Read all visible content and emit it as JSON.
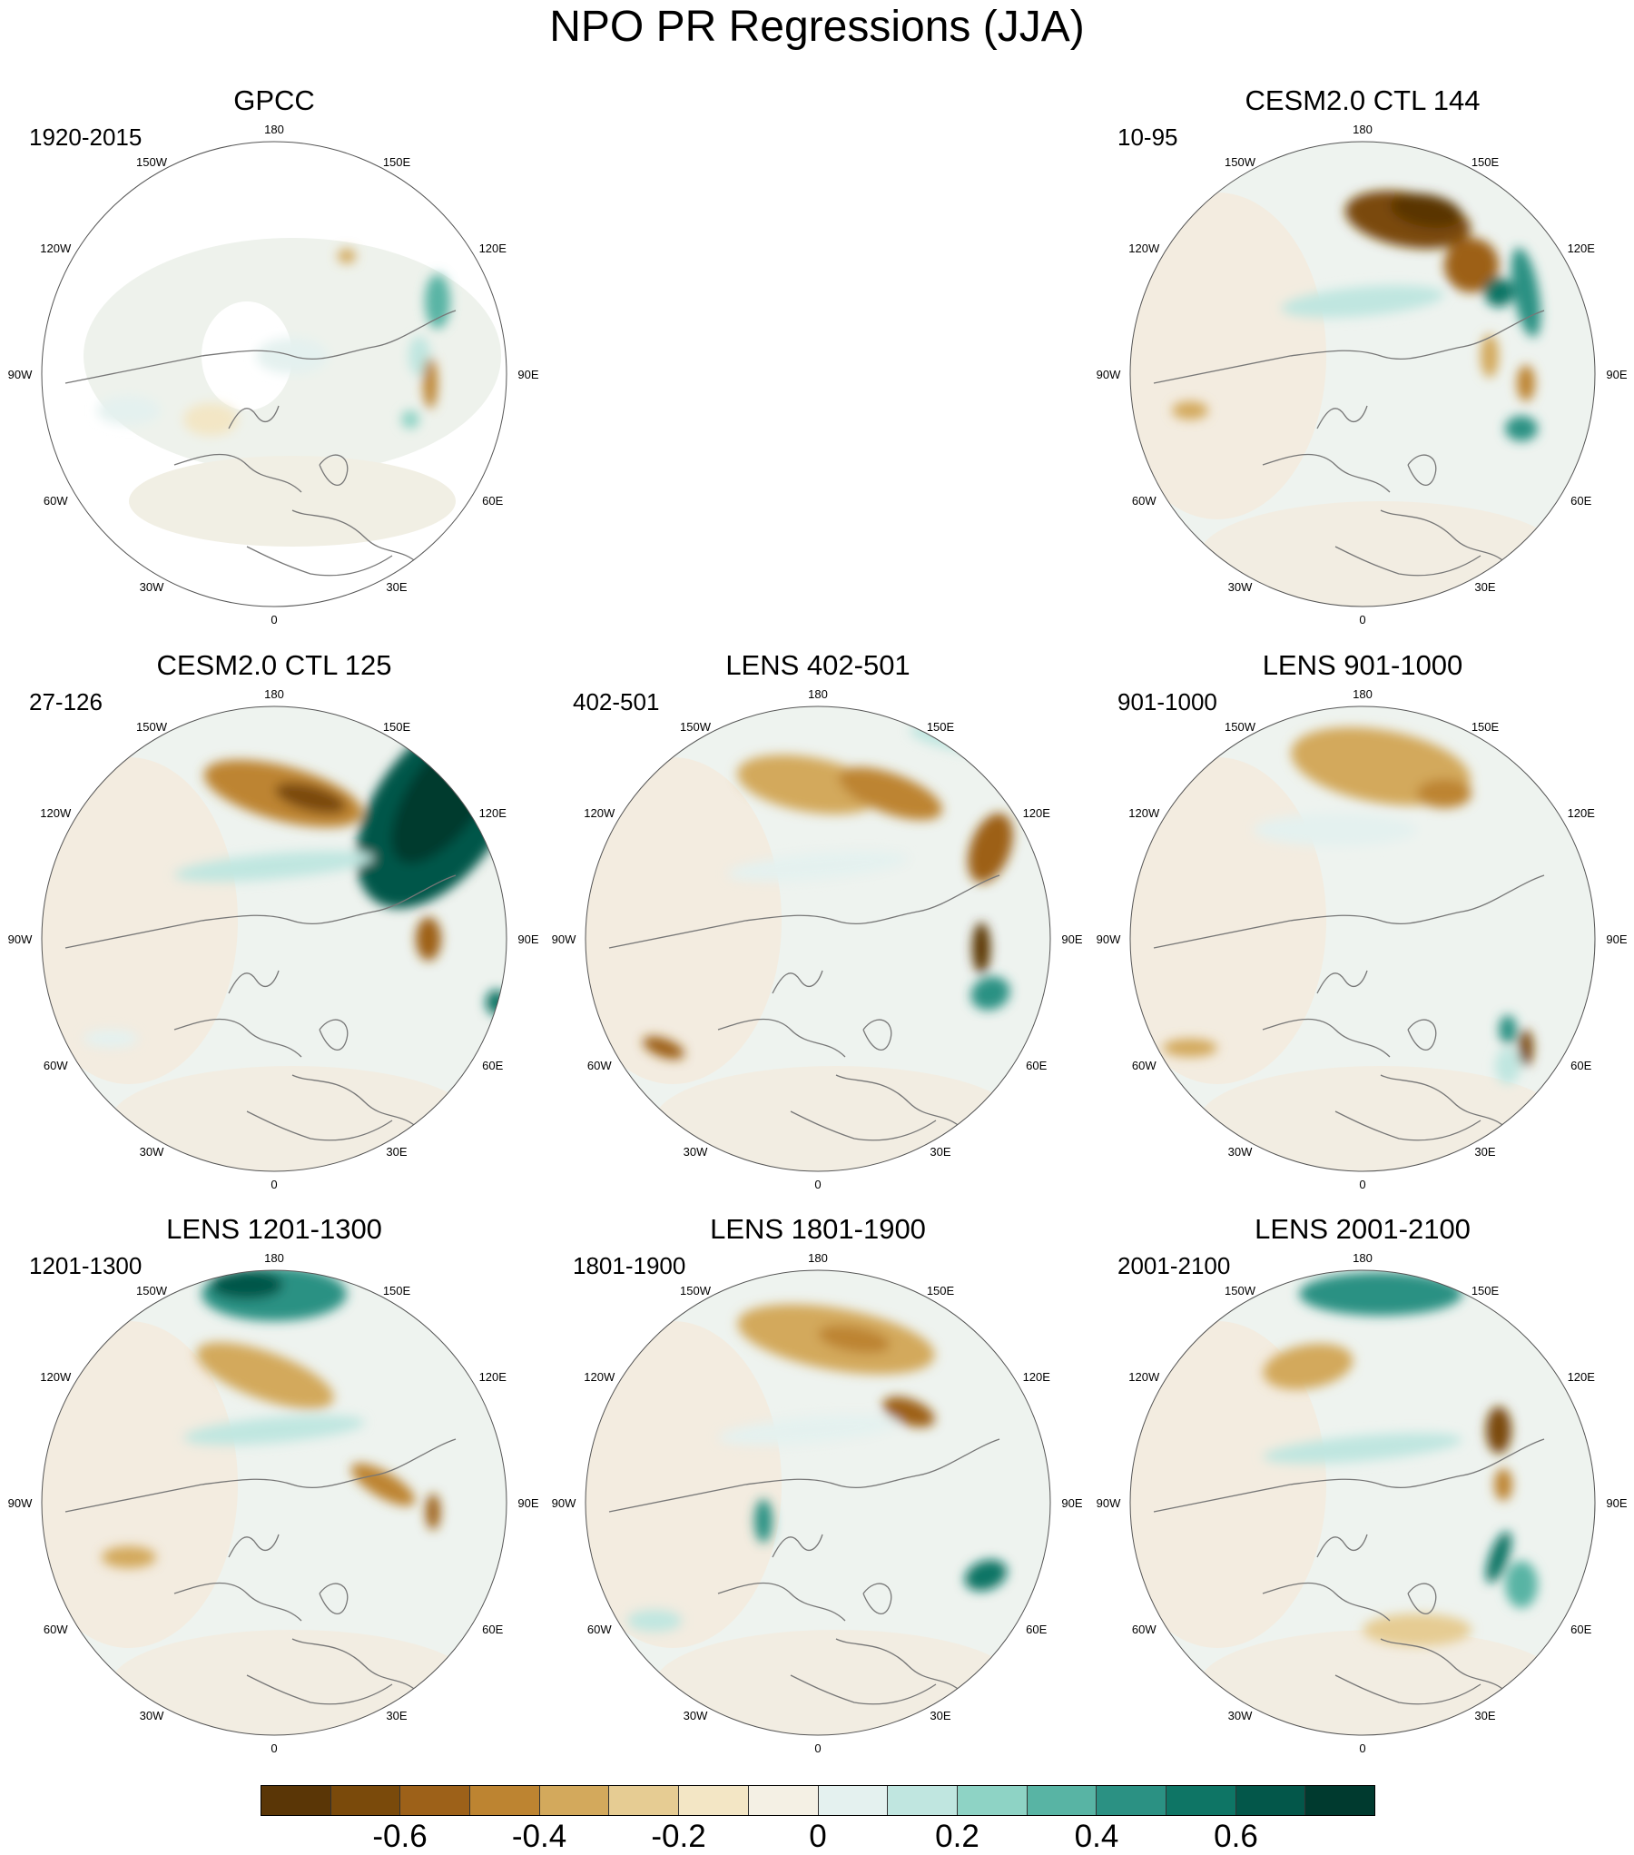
{
  "title": "NPO PR Regressions (JJA)",
  "projection": "north-polar-stereographic",
  "variable": "PR",
  "season": "JJA",
  "longitude_labels": {
    "180": "180",
    "150E": "150E",
    "120E": "120E",
    "90E": "90E",
    "60E": "60E",
    "30E": "30E",
    "0": "0",
    "30W": "30W",
    "60W": "60W",
    "90W": "90W",
    "120W": "120W",
    "150W": "150W"
  },
  "panels": [
    {
      "title": "GPCC",
      "subtitle": "1920-2015",
      "type": "observation"
    },
    {
      "title": "CESM2.0 CTL 144",
      "subtitle": "10-95",
      "type": "model"
    },
    {
      "title": "CESM2.0 CTL 125",
      "subtitle": "27-126",
      "type": "model"
    },
    {
      "title": "LENS 402-501",
      "subtitle": "402-501",
      "type": "model"
    },
    {
      "title": "LENS 901-1000",
      "subtitle": "901-1000",
      "type": "model"
    },
    {
      "title": "LENS 1201-1300",
      "subtitle": "1201-1300",
      "type": "model"
    },
    {
      "title": "LENS 1801-1900",
      "subtitle": "1801-1900",
      "type": "model"
    },
    {
      "title": "LENS 2001-2100",
      "subtitle": "2001-2100",
      "type": "model"
    }
  ],
  "colorbar": {
    "colors": [
      "#5a3606",
      "#7a4a0b",
      "#9d6119",
      "#bd8431",
      "#d3a95c",
      "#e6cc93",
      "#f3e6c5",
      "#f4f0e4",
      "#e4f1ef",
      "#c0e6e0",
      "#8ed3c5",
      "#58b4a4",
      "#2b9183",
      "#0e7565",
      "#03574a",
      "#003a2f"
    ],
    "tick_values": [
      -0.6,
      -0.4,
      -0.2,
      0,
      0.2,
      0.4,
      0.6
    ],
    "tick_labels": [
      "-0.6",
      "-0.4",
      "-0.2",
      "0",
      "0.2",
      "0.4",
      "0.6"
    ]
  }
}
